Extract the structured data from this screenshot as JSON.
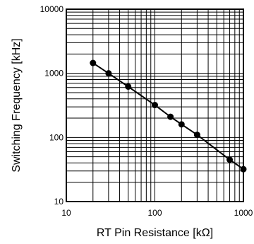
{
  "chart_data": {
    "type": "line",
    "title": "",
    "xlabel": "RT Pin Resistance [kΩ]",
    "ylabel": "Switching Frequency [kHz]",
    "x_scale": "log",
    "y_scale": "log",
    "xlim": [
      10,
      1000
    ],
    "ylim": [
      10,
      10000
    ],
    "x_ticks": [
      {
        "value": 10,
        "label": "10"
      },
      {
        "value": 100,
        "label": "100"
      },
      {
        "value": 1000,
        "label": "1000"
      }
    ],
    "y_ticks": [
      {
        "value": 10,
        "label": "10"
      },
      {
        "value": 100,
        "label": "100"
      },
      {
        "value": 1000,
        "label": "1000"
      },
      {
        "value": 10000,
        "label": "10000"
      }
    ],
    "grid": true,
    "legend": "none",
    "series": [
      {
        "x": [
          20,
          30,
          50,
          100,
          150,
          200,
          300,
          700,
          1000
        ],
        "y": [
          1450,
          1000,
          620,
          320,
          210,
          160,
          110,
          45,
          32
        ],
        "marker": "circle",
        "color": "#000000"
      }
    ]
  }
}
